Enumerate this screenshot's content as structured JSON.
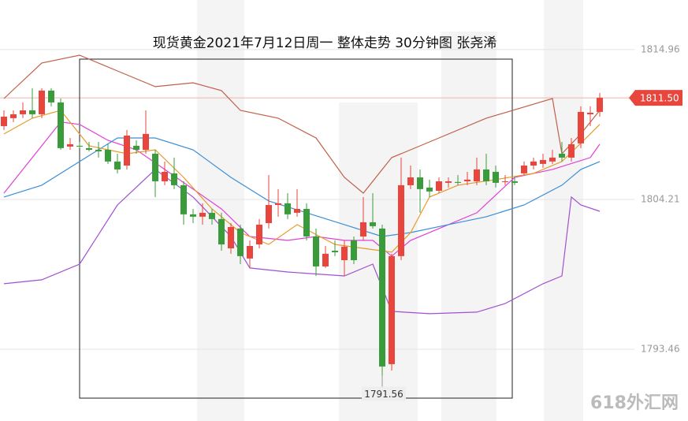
{
  "chart_data": {
    "type": "candlestick",
    "title": "现货黄金2021年7月12日周一 整体走势 30分钟图 张尧浠",
    "ylim": [
      1788.31,
      1818.52
    ],
    "yticks": [
      1793.46,
      1804.21,
      1814.96
    ],
    "grid": true,
    "up_color": "#e8453c",
    "down_color": "#3a9b3a",
    "open": [
      1809.47,
      1810.04,
      1810.32,
      1810.6,
      1810.32,
      1812.02,
      1811.17,
      1808.0,
      1808.06,
      1807.89,
      1807.77,
      1807.77,
      1806.93,
      1806.64,
      1808.06,
      1807.77,
      1807.49,
      1805.51,
      1806.08,
      1805.23,
      1803.14,
      1802.97,
      1803.25,
      1802.8,
      1800.7,
      1802.12,
      1799.97,
      1800.98,
      1802.51,
      1803.81,
      1803.93,
      1803.25,
      1803.53,
      1801.55,
      1799.4,
      1800.53,
      1799.85,
      1801.27,
      1801.55,
      1802.57,
      1802.12,
      1792.39,
      1800.14,
      1805.23,
      1805.79,
      1805.06,
      1804.83,
      1805.4,
      1805.46,
      1805.51,
      1805.51,
      1806.36,
      1806.19,
      1805.46,
      1805.51,
      1806.08,
      1806.64,
      1806.76,
      1806.93,
      1807.49,
      1807.21,
      1808.23,
      1810.32,
      1810.49
    ],
    "high": [
      1810.6,
      1810.6,
      1811.17,
      1812.19,
      1812.19,
      1812.19,
      1811.45,
      1808.62,
      1808.34,
      1808.34,
      1808.34,
      1808.17,
      1807.49,
      1809.19,
      1808.45,
      1810.6,
      1807.77,
      1806.93,
      1807.21,
      1805.51,
      1803.53,
      1803.93,
      1803.53,
      1803.25,
      1802.51,
      1802.4,
      1801.27,
      1802.8,
      1805.96,
      1804.95,
      1804.66,
      1804.95,
      1803.93,
      1802.12,
      1800.87,
      1801.27,
      1801.27,
      1801.55,
      1804.38,
      1804.66,
      1802.4,
      1800.31,
      1807.21,
      1806.64,
      1806.36,
      1805.63,
      1805.79,
      1805.79,
      1805.96,
      1806.19,
      1807.21,
      1807.49,
      1806.64,
      1805.96,
      1805.79,
      1806.93,
      1807.21,
      1807.49,
      1807.77,
      1808.34,
      1808.62,
      1810.89,
      1810.89,
      1811.85
    ],
    "low": [
      1809.19,
      1809.76,
      1810.04,
      1810.04,
      1810.04,
      1810.89,
      1807.77,
      1807.77,
      1807.89,
      1807.66,
      1807.21,
      1806.76,
      1806.08,
      1806.36,
      1807.49,
      1807.49,
      1804.38,
      1805.23,
      1804.95,
      1802.4,
      1802.51,
      1802.4,
      1802.4,
      1800.53,
      1800.31,
      1799.57,
      1799.29,
      1800.7,
      1802.12,
      1802.97,
      1802.8,
      1802.97,
      1801.27,
      1798.72,
      1799.29,
      1800.14,
      1798.72,
      1799.57,
      1801.27,
      1802.12,
      1791.56,
      1791.93,
      1799.85,
      1804.95,
      1803.25,
      1804.38,
      1804.66,
      1805.06,
      1805.23,
      1805.23,
      1805.23,
      1805.23,
      1805.06,
      1805.23,
      1805.23,
      1805.96,
      1806.36,
      1806.47,
      1806.76,
      1806.93,
      1806.93,
      1807.89,
      1809.47,
      1810.15
    ],
    "close": [
      1810.15,
      1810.32,
      1810.6,
      1810.32,
      1812.02,
      1811.17,
      1807.89,
      1808.17,
      1808.0,
      1807.77,
      1807.66,
      1806.93,
      1806.36,
      1808.79,
      1807.77,
      1808.91,
      1805.51,
      1806.19,
      1805.23,
      1803.14,
      1802.97,
      1803.25,
      1802.8,
      1800.98,
      1802.23,
      1800.14,
      1800.87,
      1802.4,
      1803.81,
      1803.93,
      1803.14,
      1803.53,
      1801.55,
      1799.4,
      1800.31,
      1800.42,
      1800.82,
      1799.85,
      1802.57,
      1802.29,
      1792.22,
      1800.14,
      1805.23,
      1805.79,
      1804.95,
      1804.78,
      1805.51,
      1805.51,
      1805.4,
      1805.63,
      1806.36,
      1805.51,
      1805.4,
      1805.51,
      1805.4,
      1806.64,
      1806.93,
      1807.04,
      1807.21,
      1807.21,
      1808.17,
      1810.49,
      1810.43,
      1811.5
    ],
    "lines": [
      {
        "color": "#c0604a",
        "x": [
          0,
          4,
          8,
          12,
          16,
          20,
          23,
          25,
          29,
          33,
          36,
          38,
          41,
          43,
          46,
          51,
          58,
          59,
          61,
          63
        ],
        "values": [
          1811.45,
          1814.0,
          1814.56,
          1813.43,
          1812.3,
          1812.58,
          1812.02,
          1810.6,
          1810.04,
          1808.62,
          1805.79,
          1804.66,
          1807.21,
          1807.77,
          1808.62,
          1810.04,
          1811.45,
          1807.49,
          1808.91,
          1810.6
        ]
      },
      {
        "color": "#e040d8",
        "x": [
          0,
          3,
          6,
          8,
          11,
          14,
          17,
          20,
          23,
          26,
          30,
          33,
          36,
          39,
          41,
          43,
          46,
          50,
          54,
          58,
          62,
          63
        ],
        "values": [
          1804.66,
          1807.21,
          1809.76,
          1809.59,
          1808.45,
          1807.77,
          1806.36,
          1804.95,
          1803.53,
          1801.55,
          1801.27,
          1801.55,
          1801.27,
          1801.27,
          1800.14,
          1801.27,
          1802.12,
          1803.25,
          1805.79,
          1806.36,
          1807.21,
          1808.17
        ]
      },
      {
        "color": "#3a8fd8",
        "x": [
          0,
          4,
          8,
          12,
          16,
          20,
          24,
          28,
          32,
          36,
          40,
          43,
          47,
          51,
          55,
          59,
          61,
          63
        ],
        "values": [
          1804.38,
          1805.23,
          1806.93,
          1808.62,
          1808.62,
          1807.77,
          1805.79,
          1804.1,
          1803.25,
          1802.4,
          1801.55,
          1801.83,
          1802.4,
          1802.97,
          1803.81,
          1805.23,
          1806.36,
          1806.93
        ]
      },
      {
        "color": "#a050d0",
        "x": [
          0,
          4,
          8,
          12,
          16,
          20,
          24,
          26,
          30,
          36,
          39,
          41,
          45,
          50,
          53,
          57,
          59,
          60,
          61,
          63
        ],
        "values": [
          1798.16,
          1798.44,
          1799.57,
          1803.81,
          1806.36,
          1804.38,
          1801.55,
          1799.29,
          1799.0,
          1798.72,
          1799.57,
          1796.18,
          1796.01,
          1796.12,
          1796.74,
          1798.16,
          1798.72,
          1804.38,
          1803.81,
          1803.36
        ]
      },
      {
        "color": "#e89a2a",
        "x": [
          0,
          3,
          6,
          9,
          13,
          16,
          19,
          22,
          25,
          28,
          31,
          35,
          38,
          41,
          43,
          45,
          48,
          52,
          56,
          59,
          62,
          63
        ],
        "values": [
          1808.91,
          1810.04,
          1810.6,
          1808.06,
          1807.49,
          1807.77,
          1805.79,
          1803.53,
          1801.83,
          1800.98,
          1802.4,
          1800.98,
          1800.7,
          1800.42,
          1801.83,
          1804.38,
          1805.23,
          1805.63,
          1806.08,
          1806.93,
          1808.91,
          1809.59
        ]
      }
    ],
    "last_price": {
      "value": 1811.5,
      "label": "1811.50"
    },
    "low_marker": {
      "value": 1791.56,
      "index": 40
    },
    "watermark": "618外汇网"
  }
}
